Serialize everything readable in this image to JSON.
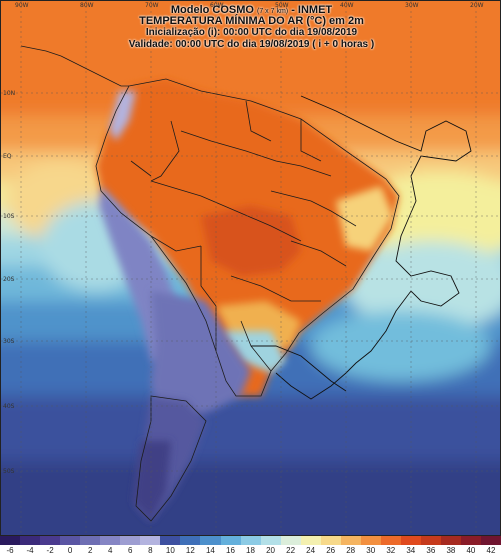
{
  "header": {
    "model_name": "Modelo COSMO",
    "resolution": "(7 x 7 km)",
    "institute": "- INMET",
    "variable": "TEMPERATURA MÍNIMA DO AR (°C) em 2m",
    "initialization": "Inicialização (i): 00:00 UTC do dia 19/08/2019",
    "validity": "Validade: 00:00 UTC do dia 19/08/2019 ( i + 0 horas )"
  },
  "map": {
    "top_longitudes": [
      "90W",
      "80W",
      "70W",
      "60W",
      "50W",
      "40W",
      "30W",
      "20W"
    ],
    "latitudes": [
      "10N",
      "EQ",
      "10S",
      "20S",
      "30S",
      "40S",
      "50S"
    ]
  },
  "colorbar": {
    "unit": "°C",
    "ticks": [
      "-6",
      "-4",
      "-2",
      "0",
      "2",
      "4",
      "6",
      "8",
      "10",
      "12",
      "14",
      "16",
      "18",
      "20",
      "22",
      "24",
      "26",
      "28",
      "30",
      "32",
      "34",
      "36",
      "38",
      "40",
      "42"
    ],
    "colors": [
      "#2a1a5e",
      "#3b2a7a",
      "#4a3a8e",
      "#5a55a3",
      "#6e6eb3",
      "#8585c4",
      "#9d9dd1",
      "#b3b3df",
      "#3d4fa0",
      "#3f6fb8",
      "#4d90cc",
      "#64b0dc",
      "#8ccbe5",
      "#b3e0e8",
      "#dceedb",
      "#f4f0b0",
      "#f7d98a",
      "#f5b460",
      "#f39040",
      "#ed6a2a",
      "#e04a1e",
      "#c63a1c",
      "#a62a20",
      "#8a1c28",
      "#701530"
    ]
  }
}
